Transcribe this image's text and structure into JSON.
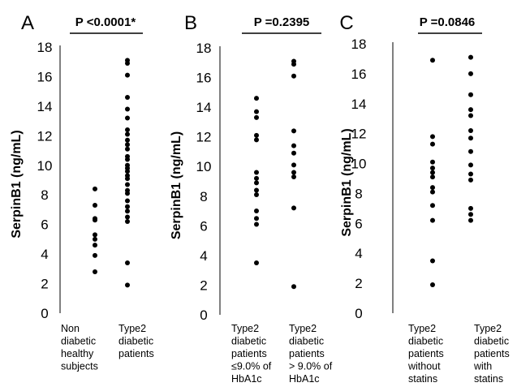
{
  "chart_data": [
    {
      "type": "scatter",
      "panel": "A",
      "p_value": "P <0.0001*",
      "ylabel": "SerpinB1 (ng/mL)",
      "ylim": [
        0,
        18
      ],
      "yticks": [
        0,
        2,
        4,
        6,
        8,
        10,
        12,
        14,
        16,
        18
      ],
      "grid": false,
      "categories": [
        [
          "Non",
          "diabetic",
          "healthy",
          "subjects"
        ],
        [
          "Type2",
          "diabetic",
          "patients"
        ]
      ],
      "groups": [
        [
          2.8,
          3.9,
          4.6,
          5.0,
          5.3,
          6.3,
          6.4,
          7.3,
          8.4
        ],
        [
          1.9,
          3.4,
          6.2,
          6.5,
          6.9,
          7.2,
          7.6,
          8.1,
          8.3,
          8.7,
          9.1,
          9.3,
          9.6,
          9.8,
          10.0,
          10.4,
          10.6,
          11.1,
          11.4,
          11.7,
          12.1,
          12.4,
          13.2,
          13.8,
          14.6,
          16.1,
          16.9,
          17.1
        ]
      ]
    },
    {
      "type": "scatter",
      "panel": "B",
      "p_value": "P =0.2395",
      "ylabel": "SerpinB1 (ng/mL)",
      "ylim": [
        0,
        18
      ],
      "yticks": [
        0,
        2,
        4,
        6,
        8,
        10,
        12,
        14,
        16,
        18
      ],
      "grid": false,
      "categories": [
        [
          "Type2",
          "diabetic",
          "patients",
          "≤9.0% of",
          "HbA1c"
        ],
        [
          "Type2",
          "diabetic",
          "patients",
          "> 9.0% of",
          "HbA1c"
        ]
      ],
      "groups": [
        [
          3.5,
          6.1,
          6.5,
          7.0,
          8.1,
          8.4,
          8.9,
          9.2,
          9.6,
          11.8,
          12.1,
          13.3,
          13.7,
          14.6
        ],
        [
          1.9,
          7.2,
          9.3,
          9.6,
          10.1,
          10.9,
          11.4,
          12.4,
          16.1,
          16.9,
          17.1
        ]
      ]
    },
    {
      "type": "scatter",
      "panel": "C",
      "p_value": "P =0.0846",
      "ylabel": "SerpinB1 (ng/mL)",
      "ylim": [
        0,
        18
      ],
      "yticks": [
        0,
        2,
        4,
        6,
        8,
        10,
        12,
        14,
        16,
        18
      ],
      "grid": false,
      "categories": [
        [
          "Type2",
          "diabetic",
          "patients",
          "without",
          "statins"
        ],
        [
          "Type2",
          "diabetic",
          "patients",
          "with",
          "statins"
        ]
      ],
      "groups": [
        [
          1.9,
          3.5,
          6.2,
          7.2,
          8.1,
          8.4,
          9.1,
          9.4,
          9.7,
          10.1,
          11.3,
          11.8,
          16.9
        ],
        [
          6.2,
          6.6,
          7.0,
          8.9,
          9.3,
          9.9,
          10.8,
          11.7,
          12.2,
          13.2,
          13.6,
          14.6,
          16.0,
          17.1
        ]
      ]
    }
  ]
}
